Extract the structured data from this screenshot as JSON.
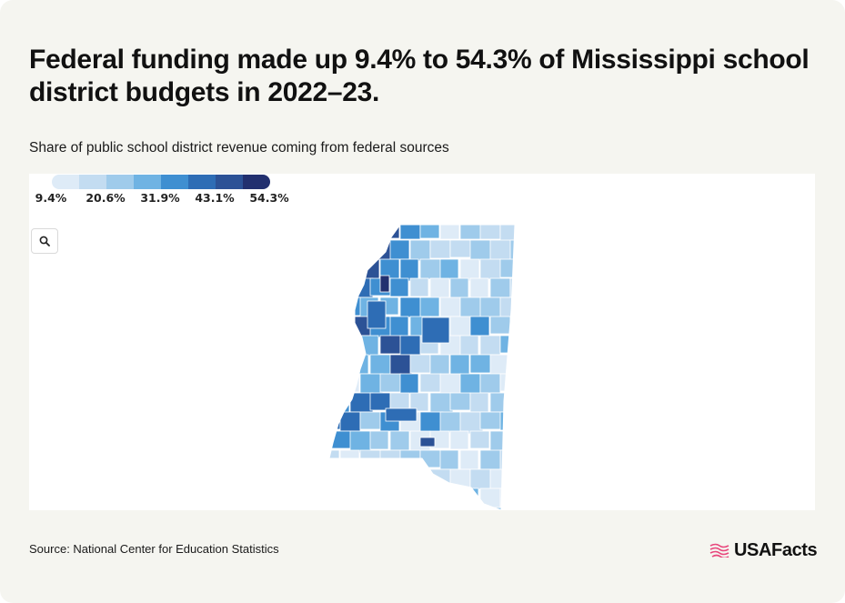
{
  "header": {
    "title": "Federal funding made up 9.4% to 54.3% of Mississippi school district budgets in 2022–23.",
    "subtitle": "Share of public school district revenue coming from federal sources"
  },
  "legend": {
    "labels": [
      "9.4%",
      "20.6%",
      "31.9%",
      "43.1%",
      "54.3%"
    ],
    "colors": [
      "#deebf7",
      "#c3dcf1",
      "#9fcbeb",
      "#6fb3e3",
      "#3f8fd1",
      "#2e6db5",
      "#2c5296",
      "#22306f"
    ]
  },
  "controls": {
    "zoom_icon": "search-icon"
  },
  "chart_data": {
    "type": "choropleth",
    "region": "Mississippi school districts",
    "range": [
      9.4,
      54.3
    ]
  },
  "footer": {
    "source": "Source: National Center for Education Statistics",
    "brand": "USAFacts",
    "brand_icon": "usafacts-flag-icon",
    "brand_color": "#e8467c"
  }
}
